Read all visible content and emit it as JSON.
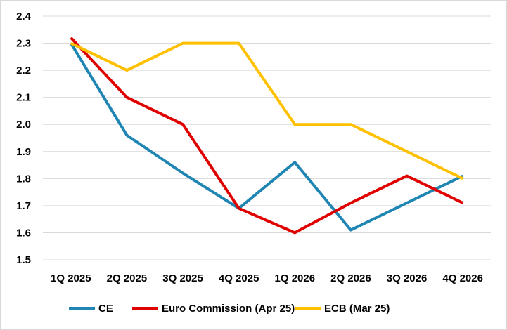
{
  "chart_data": {
    "type": "line",
    "title": "",
    "xlabel": "",
    "ylabel": "",
    "categories": [
      "1Q 2025",
      "2Q 2025",
      "3Q 2025",
      "4Q 2025",
      "1Q 2026",
      "2Q 2026",
      "3Q 2026",
      "4Q 2026"
    ],
    "ylim": [
      1.5,
      2.4
    ],
    "yticks": [
      "1.5",
      "1.6",
      "1.7",
      "1.8",
      "1.9",
      "2.0",
      "2.1",
      "2.2",
      "2.3",
      "2.4"
    ],
    "grid": true,
    "legend_position": "bottom",
    "series": [
      {
        "name": "CE",
        "color": "#1f86b4",
        "values": [
          2.3,
          1.96,
          1.82,
          1.69,
          1.86,
          1.61,
          1.71,
          1.81
        ]
      },
      {
        "name": "Euro Commission (Apr 25)",
        "color": "#e00000",
        "values": [
          2.32,
          2.1,
          2.0,
          1.69,
          1.6,
          1.71,
          1.81,
          1.71
        ]
      },
      {
        "name": "ECB (Mar 25)",
        "color": "#ffc000",
        "values": [
          2.3,
          2.2,
          2.3,
          2.3,
          2.0,
          2.0,
          1.9,
          1.8
        ]
      }
    ]
  }
}
